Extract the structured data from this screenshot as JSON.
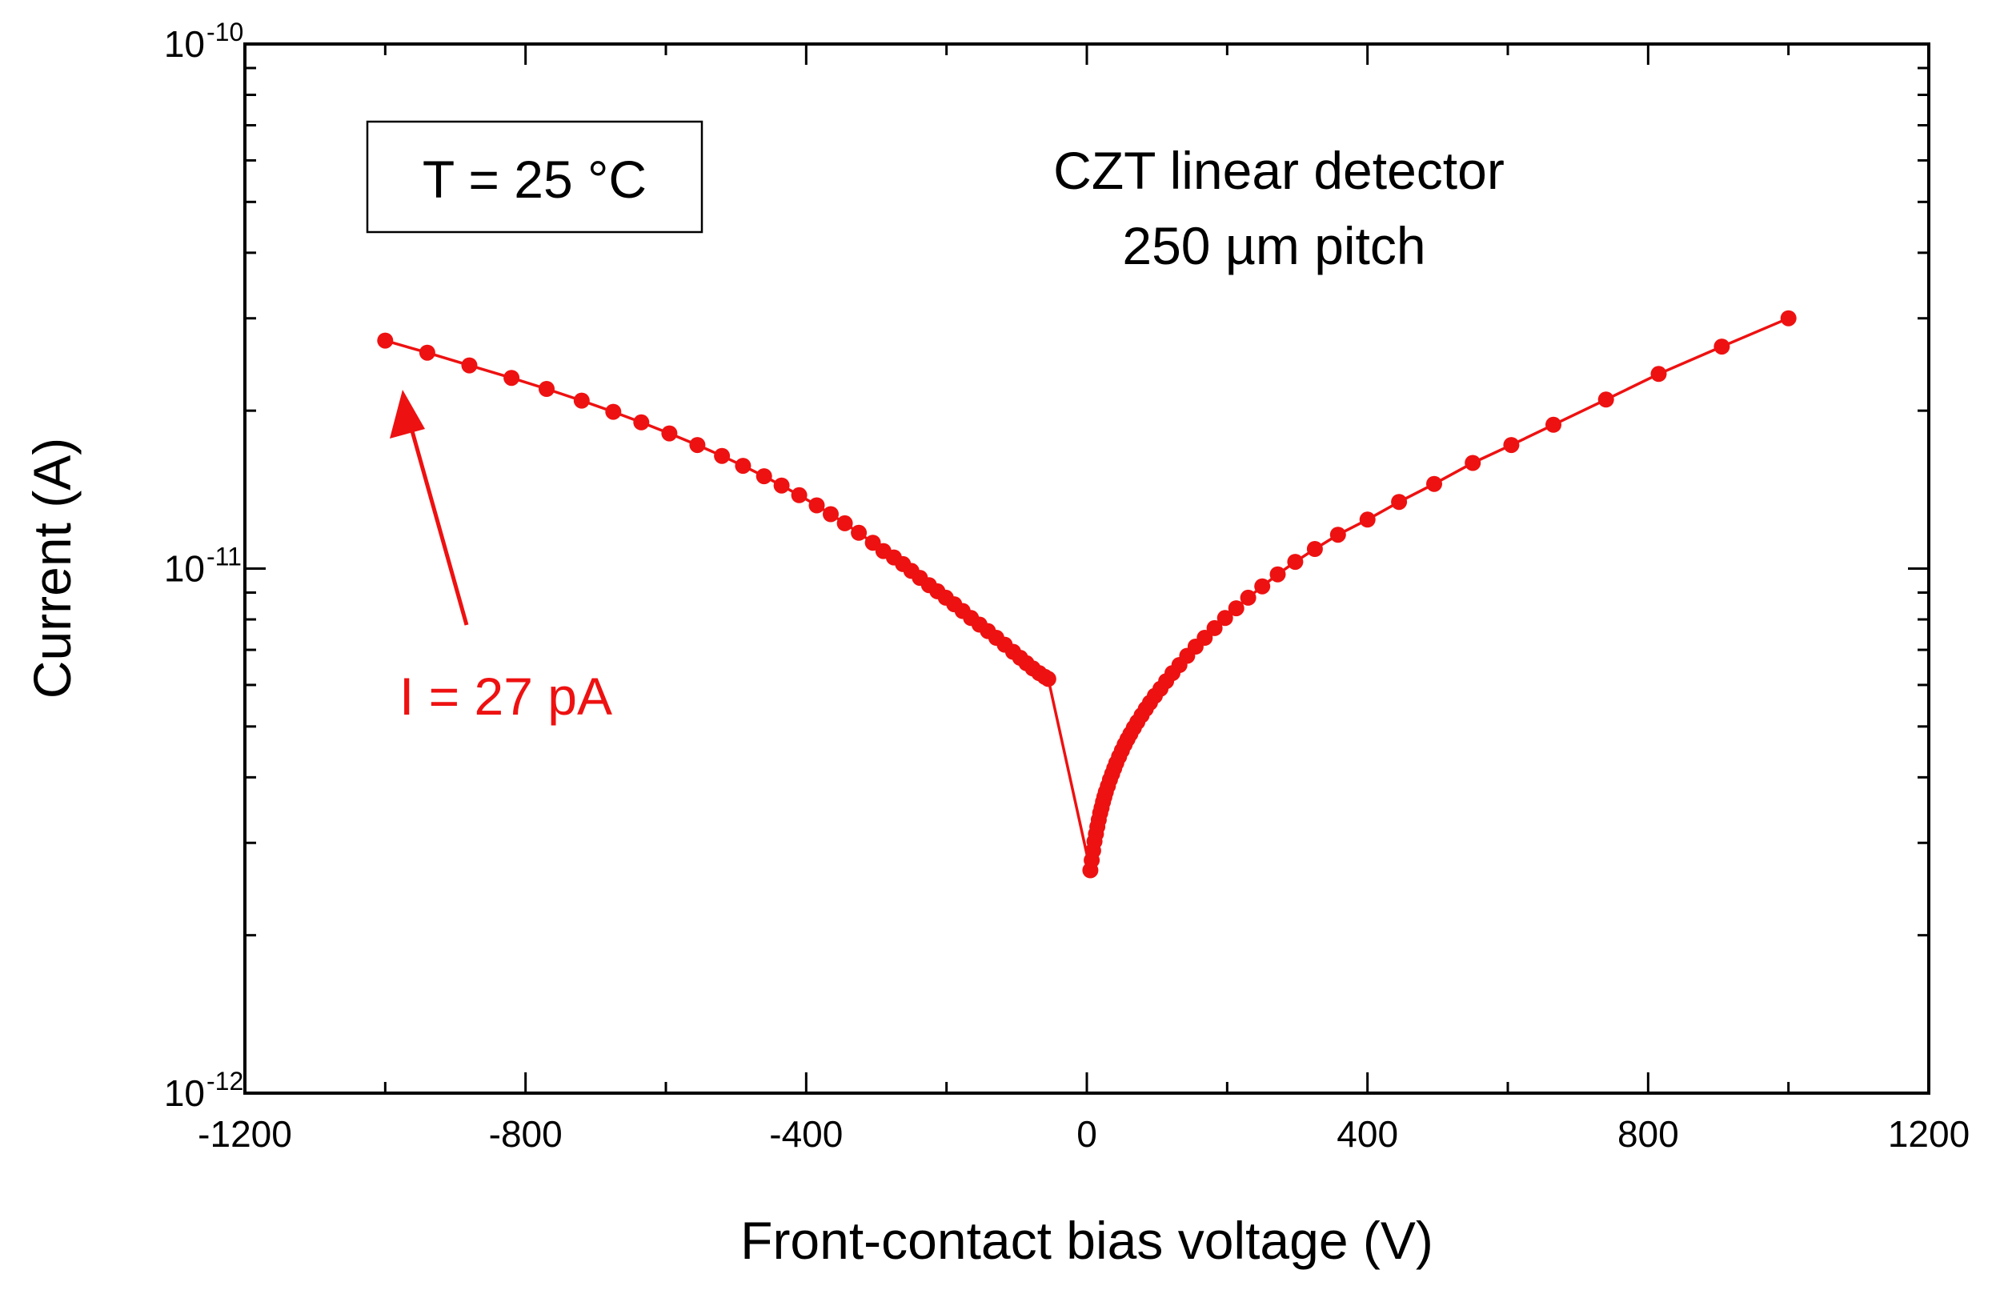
{
  "colors": {
    "series": "#ee1111",
    "axis": "#000000",
    "background": "#ffffff"
  },
  "chart_data": {
    "type": "line",
    "title": "",
    "xlabel": "Front-contact bias voltage (V)",
    "ylabel": "Current (A)",
    "xlim": [
      -1200,
      1200
    ],
    "ylim": [
      1e-12,
      1e-10
    ],
    "yscale": "log",
    "xticks": [
      {
        "value": -1200,
        "label": "-1200"
      },
      {
        "value": -800,
        "label": "-800"
      },
      {
        "value": -400,
        "label": "-400"
      },
      {
        "value": 0,
        "label": "0"
      },
      {
        "value": 400,
        "label": "400"
      },
      {
        "value": 800,
        "label": "800"
      },
      {
        "value": 1200,
        "label": "1200"
      }
    ],
    "yticks": [
      {
        "value": 1e-10,
        "base": "10",
        "exp": "-10"
      },
      {
        "value": 1e-11,
        "base": "10",
        "exp": "-11"
      },
      {
        "value": 1e-12,
        "base": "10",
        "exp": "-12"
      }
    ],
    "annotations": {
      "temperature": "T = 25 °C",
      "detector_line1": "CZT linear detector",
      "detector_line2": "250 µm pitch",
      "current_label": "I = 27 pA"
    },
    "series": [
      {
        "name": "CZT linear detector, 250 µm pitch",
        "x": [
          -1000,
          -940,
          -880,
          -820,
          -770,
          -720,
          -675,
          -635,
          -595,
          -555,
          -520,
          -490,
          -460,
          -435,
          -410,
          -385,
          -365,
          -345,
          -325,
          -305,
          -290,
          -275,
          -262,
          -250,
          -238,
          -225,
          -213,
          -201,
          -189,
          -177,
          -165,
          -153,
          -141,
          -129,
          -117,
          -105,
          -95,
          -86,
          -77,
          -68,
          -60,
          -55,
          5,
          7,
          9,
          11,
          13,
          15,
          17,
          19,
          21,
          23,
          25,
          27,
          30,
          33,
          36,
          39,
          42,
          46,
          50,
          54,
          58,
          62,
          67,
          72,
          78,
          84,
          90,
          97,
          105,
          113,
          122,
          132,
          143,
          155,
          168,
          182,
          197,
          213,
          230,
          250,
          272,
          297,
          325,
          358,
          400,
          445,
          495,
          550,
          605,
          665,
          740,
          815,
          905,
          1000
        ],
        "y": [
          2.72e-11,
          2.58e-11,
          2.44e-11,
          2.31e-11,
          2.2e-11,
          2.09e-11,
          1.99e-11,
          1.9e-11,
          1.81e-11,
          1.72e-11,
          1.64e-11,
          1.57e-11,
          1.5e-11,
          1.44e-11,
          1.38e-11,
          1.32e-11,
          1.27e-11,
          1.22e-11,
          1.17e-11,
          1.12e-11,
          1.08e-11,
          1.05e-11,
          1.02e-11,
          9.9e-12,
          9.6e-12,
          9.3e-12,
          9.05e-12,
          8.8e-12,
          8.55e-12,
          8.3e-12,
          8.05e-12,
          7.82e-12,
          7.6e-12,
          7.38e-12,
          7.16e-12,
          6.94e-12,
          6.76e-12,
          6.6e-12,
          6.45e-12,
          6.32e-12,
          6.22e-12,
          6.16e-12,
          2.66e-12,
          2.78e-12,
          2.9e-12,
          3.02e-12,
          3.12e-12,
          3.22e-12,
          3.32e-12,
          3.42e-12,
          3.5e-12,
          3.59e-12,
          3.67e-12,
          3.75e-12,
          3.85e-12,
          3.96e-12,
          4.06e-12,
          4.16e-12,
          4.26e-12,
          4.38e-12,
          4.5e-12,
          4.62e-12,
          4.73e-12,
          4.84e-12,
          4.97e-12,
          5.1e-12,
          5.25e-12,
          5.4e-12,
          5.55e-12,
          5.72e-12,
          5.9e-12,
          6.1e-12,
          6.32e-12,
          6.55e-12,
          6.82e-12,
          7.1e-12,
          7.38e-12,
          7.7e-12,
          8.05e-12,
          8.4e-12,
          8.8e-12,
          9.25e-12,
          9.75e-12,
          1.03e-11,
          1.09e-11,
          1.16e-11,
          1.24e-11,
          1.34e-11,
          1.45e-11,
          1.59e-11,
          1.72e-11,
          1.88e-11,
          2.1e-11,
          2.35e-11,
          2.65e-11,
          3e-11
        ]
      }
    ]
  }
}
